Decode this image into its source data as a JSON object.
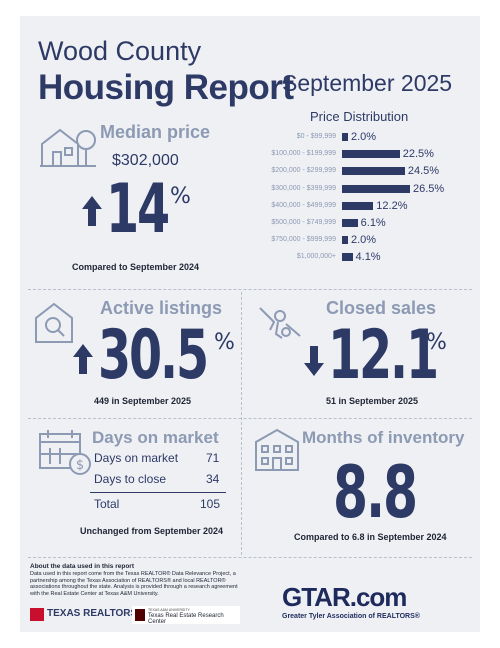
{
  "header": {
    "county": "Wood County",
    "title": "Housing Report",
    "month": "September 2025"
  },
  "median_price": {
    "label": "Median price",
    "value": "$302,000",
    "change": "14",
    "unit": "%",
    "direction": "up",
    "note": "Compared to September 2024"
  },
  "price_distribution": {
    "title": "Price Distribution",
    "chart_data": {
      "type": "bar",
      "title": "Price Distribution",
      "categories": [
        "$0 - $99,999",
        "$100,000 - $199,999",
        "$200,000 - $299,999",
        "$300,000 - $399,999",
        "$400,000 - $499,999",
        "$500,000 - $749,999",
        "$750,000 - $999,999",
        "$1,000,000+"
      ],
      "values": [
        2.0,
        22.5,
        24.5,
        26.5,
        12.2,
        6.1,
        2.0,
        4.1
      ],
      "value_labels": [
        "2.0%",
        "22.5%",
        "24.5%",
        "26.5%",
        "12.2%",
        "6.1%",
        "2.0%",
        "4.1%"
      ],
      "orientation": "horizontal",
      "xlim": [
        0,
        26.5
      ]
    }
  },
  "active_listings": {
    "label": "Active listings",
    "change": "30.5",
    "unit": "%",
    "direction": "up",
    "note": "449 in September 2025"
  },
  "closed_sales": {
    "label": "Closed sales",
    "change": "12.1",
    "unit": "%",
    "direction": "down",
    "note": "51 in September 2025"
  },
  "days_on_market": {
    "label": "Days on market",
    "rows": [
      {
        "label": "Days on market",
        "value": "71"
      },
      {
        "label": "Days to close",
        "value": "34"
      }
    ],
    "total_label": "Total",
    "total_value": "105",
    "note": "Unchanged from September 2024"
  },
  "months_inventory": {
    "label": "Months of inventory",
    "value": "8.8",
    "note": "Compared to 6.8 in September 2024"
  },
  "footer": {
    "about_title": "About the data used in this report",
    "about_text": "Data used in this report come from the Texas REALTOR® Data Relevance Project, a partnership among the Texas Association of REALTORS® and local REALTOR® associations throughout the state. Analysis is provided through a research agreement with the Real Estate Center at Texas A&M University.",
    "texas_realtors": "TEXAS REALTORS",
    "tamu_small": "TEXAS A&M UNIVERSITY",
    "tamu_center": "Texas Real Estate Research Center",
    "gtar_logo": "GTAR.com",
    "gtar_tagline": "Greater Tyler Association of REALTORS®"
  },
  "colors": {
    "navy": "#2e3a66",
    "light": "#8d9ab3",
    "background": "#eef0f4",
    "red": "#c8102e"
  }
}
